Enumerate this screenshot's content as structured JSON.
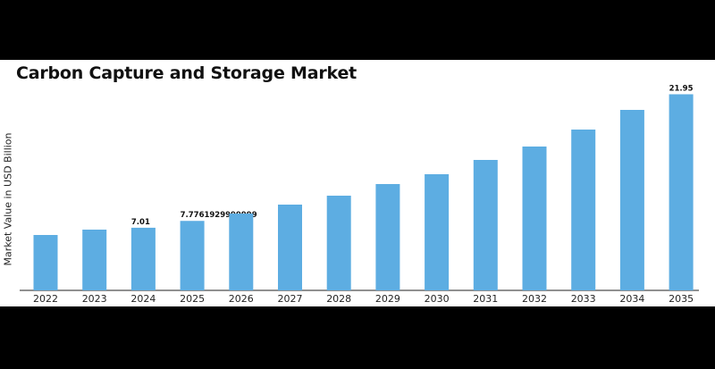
{
  "colors": {
    "background": "#000000",
    "panel": "#ffffff",
    "bar": "#5dade2",
    "text": "#111111"
  },
  "chart_data": {
    "type": "bar",
    "title": "Carbon Capture and Storage Market",
    "xlabel": "",
    "ylabel": "Market Value in USD Billion",
    "categories": [
      "2022",
      "2023",
      "2024",
      "2025",
      "2026",
      "2027",
      "2028",
      "2029",
      "2030",
      "2031",
      "2032",
      "2033",
      "2034",
      "2035"
    ],
    "values": [
      6.2,
      6.8,
      7.01,
      7.7761929999999,
      8.6,
      9.6,
      10.6,
      11.9,
      13.0,
      14.6,
      16.1,
      18.0,
      20.2,
      21.95
    ],
    "data_labels": {
      "2024": "7.01",
      "2025": "7.7761929999999",
      "2035": "21.95"
    },
    "ylim": [
      0,
      23
    ],
    "grid": false,
    "legend": "none"
  }
}
